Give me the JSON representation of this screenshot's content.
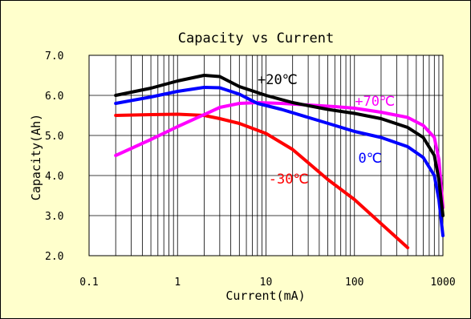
{
  "chart_data": {
    "type": "line",
    "title": "Capacity vs Current",
    "xlabel": "Current(mA)",
    "ylabel": "Capacity(Ah)",
    "x_scale": "log",
    "xlim": [
      0.1,
      1000
    ],
    "ylim": [
      2.0,
      7.0
    ],
    "x_ticks": [
      "0.1",
      "1",
      "10",
      "100",
      "1000"
    ],
    "y_ticks": [
      "7.0",
      "6.0",
      "5.0",
      "4.0",
      "3.0",
      "2.0"
    ],
    "grid": true,
    "series": [
      {
        "name": "+20℃",
        "color": "#000000",
        "x": [
          0.2,
          0.5,
          1,
          2,
          3,
          5,
          10,
          20,
          50,
          100,
          200,
          400,
          600,
          800,
          900,
          1000
        ],
        "y": [
          6.0,
          6.18,
          6.36,
          6.5,
          6.47,
          6.22,
          6.0,
          5.82,
          5.65,
          5.55,
          5.42,
          5.2,
          4.95,
          4.5,
          3.9,
          3.0
        ]
      },
      {
        "name": "+70℃",
        "color": "#ff00ff",
        "x": [
          0.2,
          0.5,
          1,
          2,
          3,
          5,
          8,
          15,
          30,
          60,
          100,
          200,
          400,
          600,
          800,
          900,
          1000
        ],
        "y": [
          4.5,
          4.9,
          5.22,
          5.52,
          5.7,
          5.8,
          5.82,
          5.8,
          5.76,
          5.72,
          5.68,
          5.58,
          5.45,
          5.25,
          4.95,
          4.4,
          3.2
        ]
      },
      {
        "name": "0℃",
        "color": "#0000ff",
        "x": [
          0.2,
          0.5,
          1,
          2,
          3,
          5,
          8,
          15,
          30,
          60,
          100,
          200,
          400,
          600,
          800,
          900,
          1000
        ],
        "y": [
          5.8,
          5.96,
          6.1,
          6.2,
          6.19,
          6.03,
          5.8,
          5.65,
          5.45,
          5.25,
          5.1,
          4.95,
          4.72,
          4.45,
          4.0,
          3.4,
          2.5
        ]
      },
      {
        "name": "-30℃",
        "color": "#ff0000",
        "x": [
          0.2,
          0.5,
          1,
          2,
          3,
          5,
          10,
          20,
          50,
          100,
          200,
          400
        ],
        "y": [
          5.5,
          5.52,
          5.53,
          5.5,
          5.42,
          5.3,
          5.05,
          4.65,
          3.9,
          3.4,
          2.8,
          2.2
        ]
      }
    ],
    "annotations": [
      {
        "text": "+20℃",
        "x": 13.5,
        "y": 6.28,
        "color": "#000000"
      },
      {
        "text": "+70℃",
        "x": 170,
        "y": 5.74,
        "color": "#ff00ff"
      },
      {
        "text": "0℃",
        "x": 150,
        "y": 4.32,
        "color": "#0000ff"
      },
      {
        "text": "-30℃",
        "x": 18,
        "y": 3.8,
        "color": "#ff0000"
      }
    ]
  }
}
